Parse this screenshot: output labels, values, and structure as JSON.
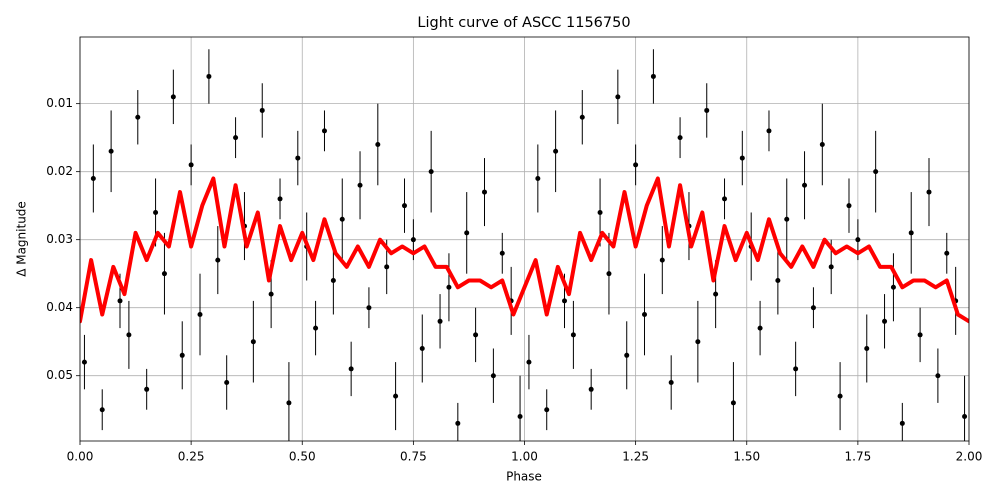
{
  "chart_data": {
    "type": "scatter",
    "title": "Light curve of ASCC 1156750",
    "xlabel": "Phase",
    "ylabel": "Δ Magnitude",
    "xlim": [
      0,
      2
    ],
    "ylim": [
      0.0002,
      0.0596
    ],
    "y_inverted": true,
    "grid": true,
    "xticks": [
      {
        "value": 0,
        "label": "0.00"
      },
      {
        "value": 0.25,
        "label": "0.25"
      },
      {
        "value": 0.5,
        "label": "0.50"
      },
      {
        "value": 0.75,
        "label": "0.75"
      },
      {
        "value": 1,
        "label": "1.00"
      },
      {
        "value": 1.25,
        "label": "1.25"
      },
      {
        "value": 1.5,
        "label": "1.50"
      },
      {
        "value": 1.75,
        "label": "1.75"
      },
      {
        "value": 2,
        "label": "2.00"
      }
    ],
    "yticks": [
      0.01,
      0.02,
      0.03,
      0.04,
      0.05
    ],
    "series": [
      {
        "type": "errorbar",
        "color": "#000000",
        "x": [
          0.01,
          0.03,
          0.05,
          0.07,
          0.09,
          0.11,
          0.13,
          0.15,
          0.17,
          0.19,
          0.21,
          0.23,
          0.25,
          0.27,
          0.29,
          0.31,
          0.33,
          0.35,
          0.37,
          0.39,
          0.41,
          0.43,
          0.45,
          0.47,
          0.49,
          0.51,
          0.53,
          0.55,
          0.57,
          0.59,
          0.61,
          0.63,
          0.65,
          0.67,
          0.69,
          0.71,
          0.73,
          0.75,
          0.77,
          0.79,
          0.81,
          0.83,
          0.85,
          0.87,
          0.89,
          0.91,
          0.93,
          0.95,
          0.97,
          0.99,
          1.01,
          1.03,
          1.05,
          1.07,
          1.09,
          1.11,
          1.13,
          1.15,
          1.17,
          1.19,
          1.21,
          1.23,
          1.25,
          1.27,
          1.29,
          1.31,
          1.33,
          1.35,
          1.37,
          1.39,
          1.41,
          1.43,
          1.45,
          1.47,
          1.49,
          1.51,
          1.53,
          1.55,
          1.57,
          1.59,
          1.61,
          1.63,
          1.65,
          1.67,
          1.69,
          1.71,
          1.73,
          1.75,
          1.77,
          1.79,
          1.81,
          1.83,
          1.85,
          1.87,
          1.89,
          1.91,
          1.93,
          1.95,
          1.97,
          1.99
        ],
        "values": [
          0.048,
          0.021,
          0.055,
          0.017,
          0.039,
          0.044,
          0.012,
          0.052,
          0.026,
          0.035,
          0.009,
          0.047,
          0.019,
          0.041,
          0.006,
          0.033,
          0.051,
          0.015,
          0.028,
          0.045,
          0.011,
          0.038,
          0.024,
          0.054,
          0.018,
          0.031,
          0.043,
          0.014,
          0.036,
          0.027,
          0.049,
          0.022,
          0.04,
          0.016,
          0.034,
          0.053,
          0.025,
          0.03,
          0.046,
          0.02,
          0.042,
          0.037,
          0.057,
          0.029,
          0.044,
          0.023,
          0.05,
          0.032,
          0.039,
          0.056,
          0.048,
          0.021,
          0.055,
          0.017,
          0.039,
          0.044,
          0.012,
          0.052,
          0.026,
          0.035,
          0.009,
          0.047,
          0.019,
          0.041,
          0.006,
          0.033,
          0.051,
          0.015,
          0.028,
          0.045,
          0.011,
          0.038,
          0.024,
          0.054,
          0.018,
          0.031,
          0.043,
          0.014,
          0.036,
          0.027,
          0.049,
          0.022,
          0.04,
          0.016,
          0.034,
          0.053,
          0.025,
          0.03,
          0.046,
          0.02,
          0.042,
          0.037,
          0.057,
          0.029,
          0.044,
          0.023,
          0.05,
          0.032,
          0.039,
          0.056
        ],
        "errors": [
          0.004,
          0.005,
          0.003,
          0.006,
          0.004,
          0.005,
          0.004,
          0.003,
          0.005,
          0.006,
          0.004,
          0.005,
          0.003,
          0.006,
          0.004,
          0.005,
          0.004,
          0.003,
          0.005,
          0.006,
          0.004,
          0.005,
          0.003,
          0.006,
          0.004,
          0.005,
          0.004,
          0.003,
          0.005,
          0.006,
          0.004,
          0.005,
          0.003,
          0.006,
          0.004,
          0.005,
          0.004,
          0.003,
          0.005,
          0.006,
          0.004,
          0.005,
          0.003,
          0.006,
          0.004,
          0.005,
          0.004,
          0.003,
          0.005,
          0.006,
          0.004,
          0.005,
          0.003,
          0.006,
          0.004,
          0.005,
          0.004,
          0.003,
          0.005,
          0.006,
          0.004,
          0.005,
          0.003,
          0.006,
          0.004,
          0.005,
          0.004,
          0.003,
          0.005,
          0.006,
          0.004,
          0.005,
          0.003,
          0.006,
          0.004,
          0.005,
          0.004,
          0.003,
          0.005,
          0.006,
          0.004,
          0.005,
          0.003,
          0.006,
          0.004,
          0.005,
          0.004,
          0.003,
          0.005,
          0.006,
          0.004,
          0.005,
          0.003,
          0.006,
          0.004,
          0.005,
          0.004,
          0.003,
          0.005,
          0.006
        ]
      },
      {
        "type": "line",
        "color": "#ff0000",
        "x": [
          0,
          0.025,
          0.05,
          0.075,
          0.1,
          0.125,
          0.15,
          0.175,
          0.2,
          0.225,
          0.25,
          0.275,
          0.3,
          0.325,
          0.35,
          0.375,
          0.4,
          0.425,
          0.45,
          0.475,
          0.5,
          0.525,
          0.55,
          0.575,
          0.6,
          0.625,
          0.65,
          0.675,
          0.7,
          0.725,
          0.75,
          0.775,
          0.8,
          0.825,
          0.85,
          0.875,
          0.9,
          0.925,
          0.95,
          0.975,
          1,
          1.025,
          1.05,
          1.075,
          1.1,
          1.125,
          1.15,
          1.175,
          1.2,
          1.225,
          1.25,
          1.275,
          1.3,
          1.325,
          1.35,
          1.375,
          1.4,
          1.425,
          1.45,
          1.475,
          1.5,
          1.525,
          1.55,
          1.575,
          1.6,
          1.625,
          1.65,
          1.675,
          1.7,
          1.725,
          1.75,
          1.775,
          1.8,
          1.825,
          1.85,
          1.875,
          1.9,
          1.925,
          1.95,
          1.975,
          2
        ],
        "values": [
          0.042,
          0.033,
          0.041,
          0.034,
          0.038,
          0.029,
          0.033,
          0.029,
          0.031,
          0.023,
          0.031,
          0.025,
          0.021,
          0.031,
          0.022,
          0.031,
          0.026,
          0.036,
          0.028,
          0.033,
          0.029,
          0.033,
          0.027,
          0.032,
          0.034,
          0.031,
          0.034,
          0.03,
          0.032,
          0.031,
          0.032,
          0.031,
          0.034,
          0.034,
          0.037,
          0.036,
          0.036,
          0.037,
          0.036,
          0.041,
          0.037,
          0.033,
          0.041,
          0.034,
          0.038,
          0.029,
          0.033,
          0.029,
          0.031,
          0.023,
          0.031,
          0.025,
          0.021,
          0.031,
          0.022,
          0.031,
          0.026,
          0.036,
          0.028,
          0.033,
          0.029,
          0.033,
          0.027,
          0.032,
          0.034,
          0.031,
          0.034,
          0.03,
          0.032,
          0.031,
          0.032,
          0.031,
          0.034,
          0.034,
          0.037,
          0.036,
          0.036,
          0.037,
          0.036,
          0.041,
          0.042
        ]
      }
    ]
  }
}
